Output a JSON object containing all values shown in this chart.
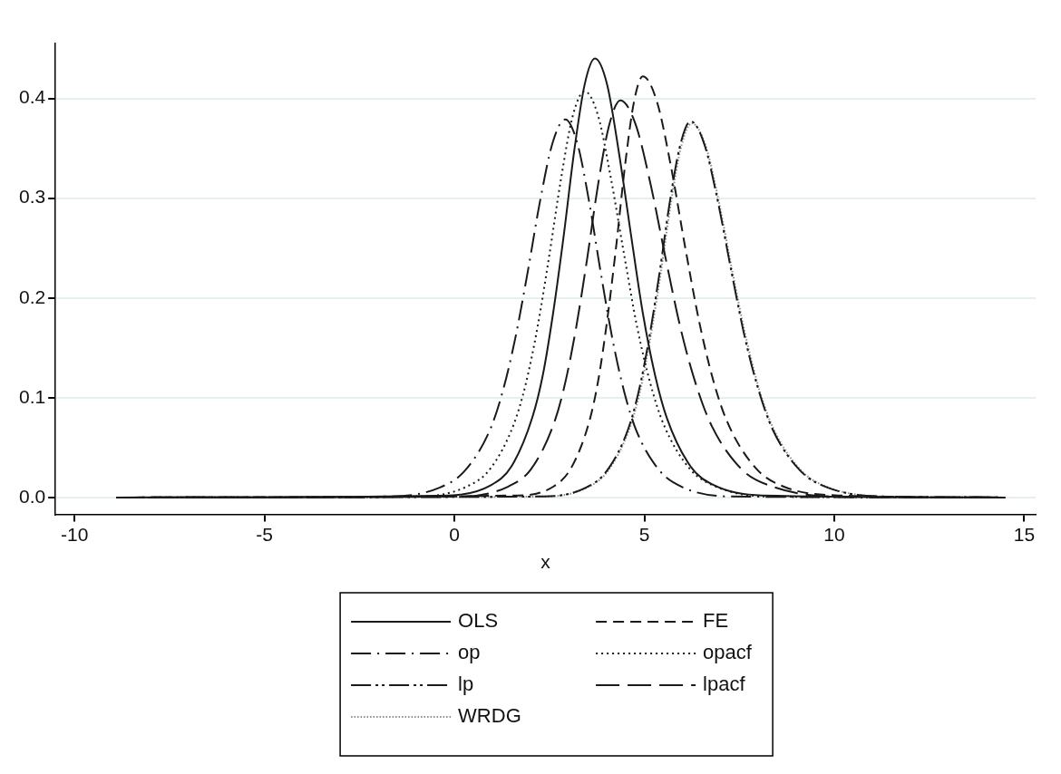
{
  "chart_data": {
    "type": "line",
    "xlabel": "x",
    "xlim": [
      -10.5,
      15.3
    ],
    "ylim": [
      -0.017,
      0.455
    ],
    "xticks": [
      -10,
      -5,
      0,
      5,
      10,
      15
    ],
    "yticks": [
      {
        "value": 0,
        "label": "0.0"
      },
      0.1,
      0.2,
      0.3,
      0.4
    ],
    "grid": "y",
    "legend": "bottom",
    "marker": "none",
    "series": [
      {
        "name": "OLS",
        "color": "#1a1a1a",
        "line_style": "solid",
        "x": [
          -8.9,
          -0.15,
          0.95,
          1.5,
          2.05,
          2.33,
          2.6,
          2.88,
          3.15,
          3.43,
          3.7,
          4.02,
          4.33,
          4.65,
          4.96,
          5.28,
          5.59,
          6.22,
          6.85,
          8.11,
          14.5
        ],
        "values": [
          0,
          0.002,
          0.012,
          0.031,
          0.08,
          0.123,
          0.185,
          0.263,
          0.346,
          0.414,
          0.44,
          0.414,
          0.346,
          0.263,
          0.185,
          0.123,
          0.08,
          0.031,
          0.012,
          0.002,
          0
        ]
      },
      {
        "name": "FE",
        "color": "#1a1a1a",
        "line_style": "dashed",
        "x": [
          -8.9,
          1.67,
          2.61,
          3.08,
          3.55,
          3.79,
          4.02,
          4.26,
          4.49,
          4.73,
          4.96,
          5.33,
          5.7,
          6.07,
          6.44,
          6.81,
          7.18,
          7.92,
          8.66,
          10.14,
          14.5
        ],
        "values": [
          0,
          0.002,
          0.011,
          0.03,
          0.076,
          0.118,
          0.177,
          0.252,
          0.332,
          0.397,
          0.422,
          0.397,
          0.332,
          0.252,
          0.177,
          0.118,
          0.076,
          0.03,
          0.011,
          0.002,
          0
        ]
      },
      {
        "name": "op",
        "color": "#1a1a1a",
        "line_style": "dashdot",
        "x": [
          -8.9,
          -1.7,
          -0.38,
          0.28,
          0.94,
          1.27,
          1.6,
          1.93,
          2.26,
          2.59,
          2.92,
          3.23,
          3.54,
          3.85,
          4.16,
          4.47,
          4.78,
          5.4,
          6.02,
          7.26,
          14.5
        ],
        "values": [
          0,
          0.001,
          0.01,
          0.027,
          0.068,
          0.106,
          0.159,
          0.226,
          0.298,
          0.356,
          0.379,
          0.356,
          0.298,
          0.226,
          0.159,
          0.106,
          0.068,
          0.027,
          0.01,
          0.001,
          0
        ]
      },
      {
        "name": "opacf",
        "color": "#1a1a1a",
        "line_style": "dotted",
        "x": [
          -8.9,
          -0.91,
          0.33,
          0.95,
          1.57,
          1.88,
          2.19,
          2.5,
          2.81,
          3.12,
          3.43,
          3.78,
          4.12,
          4.47,
          4.81,
          5.16,
          5.5,
          6.19,
          6.88,
          8.26,
          14.5
        ],
        "values": [
          0,
          0.001,
          0.011,
          0.029,
          0.074,
          0.114,
          0.171,
          0.243,
          0.32,
          0.383,
          0.407,
          0.383,
          0.32,
          0.243,
          0.171,
          0.114,
          0.074,
          0.029,
          0.011,
          0.001,
          0
        ]
      },
      {
        "name": "lp",
        "color": "#1a1a1a",
        "line_style": "dashdotdot",
        "x": [
          -8.9,
          2.37,
          3.47,
          4.02,
          4.57,
          4.85,
          5.12,
          5.4,
          5.67,
          5.95,
          6.22,
          6.58,
          6.94,
          7.3,
          7.66,
          8.02,
          8.38,
          9.1,
          9.82,
          11.26,
          14.5
        ],
        "values": [
          0,
          0.001,
          0.01,
          0.027,
          0.068,
          0.106,
          0.158,
          0.225,
          0.296,
          0.354,
          0.377,
          0.354,
          0.296,
          0.225,
          0.158,
          0.106,
          0.068,
          0.027,
          0.01,
          0.001,
          0
        ]
      },
      {
        "name": "lpacf",
        "color": "#1a1a1a",
        "line_style": "longdash",
        "x": [
          -8.9,
          0.24,
          1.42,
          2.01,
          2.6,
          2.9,
          3.19,
          3.49,
          3.78,
          4.08,
          4.37,
          4.77,
          5.17,
          5.57,
          5.97,
          6.37,
          6.77,
          7.57,
          8.37,
          9.97,
          14.5
        ],
        "values": [
          0,
          0.001,
          0.011,
          0.028,
          0.072,
          0.112,
          0.167,
          0.238,
          0.313,
          0.374,
          0.398,
          0.374,
          0.313,
          0.238,
          0.167,
          0.112,
          0.072,
          0.028,
          0.011,
          0.001,
          0
        ]
      },
      {
        "name": "WRDG",
        "color": "#8c8c8c",
        "line_style": "finedotted",
        "x": [
          -8.9,
          2.4,
          3.5,
          4.05,
          4.6,
          4.88,
          5.15,
          5.43,
          5.7,
          5.98,
          6.25,
          6.61,
          6.97,
          7.33,
          7.69,
          8.05,
          8.41,
          9.13,
          9.85,
          11.29,
          14.5
        ],
        "values": [
          0,
          0.001,
          0.01,
          0.027,
          0.068,
          0.105,
          0.158,
          0.224,
          0.295,
          0.353,
          0.375,
          0.353,
          0.295,
          0.224,
          0.158,
          0.105,
          0.068,
          0.027,
          0.01,
          0.001,
          0
        ]
      }
    ]
  }
}
